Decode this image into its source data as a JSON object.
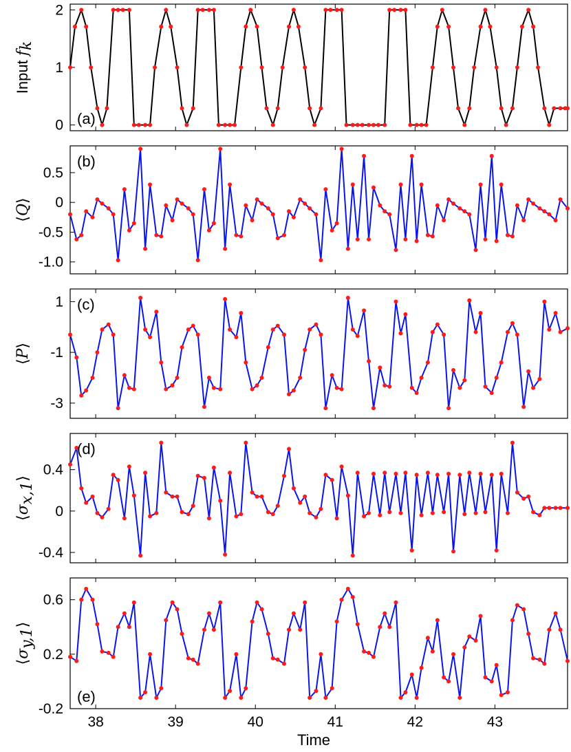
{
  "figure": {
    "x_axis_label": "Time",
    "x_ticks": [
      "38",
      "39",
      "40",
      "41",
      "42",
      "43"
    ]
  },
  "colors": {
    "black": "#000000",
    "blue": "#0b15e8",
    "red": "#ff1a1a"
  },
  "chart_data": [
    {
      "type": "line",
      "panel_label": "(a)",
      "ylabel": "Input f_k",
      "ylabel_text": "Input ",
      "ylabel_math": "f",
      "ylabel_sub": "k",
      "y_ticks": [
        "0",
        "1",
        "2"
      ],
      "y_tick_values": [
        0,
        1,
        2
      ],
      "ylim": [
        -0.1,
        2.1
      ],
      "xlim": [
        37.68,
        43.91
      ],
      "line_color": "#000000",
      "marker_color": "#ff1a1a",
      "x": [
        37.68,
        37.74,
        37.82,
        37.88,
        37.94,
        38.02,
        38.08,
        38.14,
        38.22,
        38.28,
        38.34,
        38.42,
        38.48,
        38.54,
        38.62,
        38.68,
        38.74,
        38.82,
        38.88,
        38.94,
        39.02,
        39.08,
        39.14,
        39.22,
        39.28,
        39.34,
        39.42,
        39.48,
        39.54,
        39.62,
        39.68,
        39.74,
        39.82,
        39.88,
        39.94,
        40.02,
        40.08,
        40.14,
        40.22,
        40.28,
        40.34,
        40.42,
        40.48,
        40.54,
        40.62,
        40.68,
        40.74,
        40.82,
        40.88,
        40.94,
        41.02,
        41.08,
        41.14,
        41.22,
        41.28,
        41.34,
        41.42,
        41.48,
        41.54,
        41.62,
        41.68,
        41.74,
        41.82,
        41.88,
        41.94,
        42.02,
        42.08,
        42.14,
        42.22,
        42.28,
        42.34,
        42.42,
        42.48,
        42.54,
        42.62,
        42.68,
        42.74,
        42.82,
        42.88,
        42.94,
        43.02,
        43.08,
        43.14,
        43.22,
        43.28,
        43.34,
        43.42,
        43.48,
        43.54,
        43.62,
        43.68,
        43.74,
        43.82,
        43.88,
        43.91
      ],
      "y": [
        1,
        1.71,
        2,
        1.71,
        1,
        0.29,
        0,
        0.29,
        2,
        2,
        2,
        2,
        0,
        0,
        0,
        0,
        1,
        1.71,
        2,
        1.71,
        1,
        0.29,
        0,
        0.29,
        2,
        2,
        2,
        2,
        0,
        0,
        0,
        0,
        1,
        1.71,
        2,
        1.71,
        1,
        0.29,
        0,
        0.29,
        1,
        1.71,
        2,
        1.71,
        1,
        0.29,
        0,
        0.29,
        2,
        2,
        2,
        2,
        0,
        0,
        0,
        0,
        0,
        0,
        0,
        0,
        2,
        2,
        2,
        2,
        0,
        0,
        0,
        0,
        1,
        1.71,
        2,
        1.71,
        1,
        0.29,
        0,
        0.29,
        1,
        1.71,
        2,
        1.71,
        1,
        0.29,
        0,
        0.29,
        1,
        1.71,
        2,
        1.71,
        1,
        0.29,
        0,
        0.29,
        0.29,
        0.29,
        0.29
      ]
    },
    {
      "type": "line",
      "panel_label": "(b)",
      "ylabel": "⟨Q⟩",
      "y_ticks": [
        "0.5",
        "0",
        "-0.5",
        "-1.0"
      ],
      "y_tick_values": [
        0.5,
        0,
        -0.5,
        -1.0
      ],
      "ylim": [
        -1.2,
        0.95
      ],
      "xlim": [
        37.68,
        43.91
      ],
      "line_color": "#0b15e8",
      "marker_color": "#ff1a1a",
      "x": [
        37.68,
        37.76,
        37.82,
        37.88,
        37.96,
        38.02,
        38.08,
        38.16,
        38.22,
        38.28,
        38.36,
        38.42,
        38.48,
        38.56,
        38.62,
        38.68,
        38.76,
        38.82,
        38.88,
        38.96,
        39.02,
        39.08,
        39.16,
        39.22,
        39.28,
        39.36,
        39.42,
        39.48,
        39.56,
        39.62,
        39.68,
        39.76,
        39.82,
        39.88,
        39.96,
        40.02,
        40.08,
        40.16,
        40.22,
        40.28,
        40.36,
        40.42,
        40.48,
        40.56,
        40.62,
        40.68,
        40.76,
        40.82,
        40.88,
        40.96,
        41.02,
        41.08,
        41.16,
        41.22,
        41.28,
        41.36,
        41.42,
        41.48,
        41.56,
        41.62,
        41.68,
        41.76,
        41.82,
        41.88,
        41.96,
        42.02,
        42.08,
        42.16,
        42.22,
        42.28,
        42.36,
        42.42,
        42.48,
        42.56,
        42.62,
        42.68,
        42.76,
        42.82,
        42.88,
        42.96,
        43.02,
        43.08,
        43.16,
        43.22,
        43.28,
        43.36,
        43.42,
        43.48,
        43.56,
        43.62,
        43.68,
        43.76,
        43.82,
        43.91
      ],
      "y": [
        -0.2,
        -0.62,
        -0.55,
        -0.15,
        -0.25,
        0.05,
        -0.02,
        -0.1,
        -0.2,
        -0.97,
        0.22,
        -0.47,
        -0.35,
        0.9,
        -0.78,
        0.3,
        -0.55,
        -0.57,
        -0.05,
        -0.3,
        0.05,
        -0.02,
        -0.1,
        -0.2,
        -0.97,
        0.22,
        -0.47,
        -0.35,
        0.9,
        -0.78,
        0.3,
        -0.55,
        -0.57,
        -0.05,
        -0.3,
        0.05,
        -0.02,
        -0.1,
        -0.2,
        -0.6,
        -0.55,
        -0.15,
        -0.25,
        0.05,
        -0.02,
        -0.1,
        -0.2,
        -0.97,
        0.22,
        -0.47,
        -0.35,
        0.9,
        -0.78,
        0.3,
        -0.62,
        0.78,
        -0.62,
        0.25,
        -0.05,
        -0.15,
        -0.2,
        -0.8,
        0.3,
        -0.62,
        0.78,
        -0.65,
        0.3,
        -0.55,
        -0.57,
        -0.05,
        -0.3,
        0.05,
        -0.02,
        -0.1,
        -0.15,
        -0.2,
        -0.8,
        0.3,
        -0.62,
        0.78,
        -0.65,
        0.3,
        -0.55,
        -0.57,
        -0.05,
        -0.3,
        0.05,
        -0.02,
        -0.1,
        -0.15,
        -0.2,
        -0.3,
        0.05,
        -0.1
      ],
      "note": ""
    },
    {
      "type": "line",
      "panel_label": "(c)",
      "ylabel": "⟨P⟩",
      "y_ticks": [
        "1",
        "-1",
        "-3"
      ],
      "y_tick_values": [
        1,
        -1,
        -3
      ],
      "ylim": [
        -3.6,
        1.5
      ],
      "xlim": [
        37.68,
        43.91
      ],
      "line_color": "#0b15e8",
      "marker_color": "#ff1a1a",
      "x": [],
      "y": []
    },
    {
      "type": "line",
      "panel_label": "(d)",
      "ylabel": "⟨σx,1⟩",
      "ylabel_math": "σ",
      "ylabel_sub": "x,1",
      "y_ticks": [
        "0.4",
        "0",
        "-0.4"
      ],
      "y_tick_values": [
        0.4,
        0,
        -0.4
      ],
      "ylim": [
        -0.5,
        0.75
      ],
      "xlim": [
        37.68,
        43.91
      ],
      "line_color": "#0b15e8",
      "marker_color": "#ff1a1a",
      "x": [],
      "y": []
    },
    {
      "type": "line",
      "panel_label": "(e)",
      "ylabel": "⟨σy,1⟩",
      "ylabel_math": "σ",
      "ylabel_sub": "y,1",
      "y_ticks": [
        "0.6",
        "0.2",
        "-0.2"
      ],
      "y_tick_values": [
        0.6,
        0.2,
        -0.2
      ],
      "ylim": [
        -0.2,
        0.76
      ],
      "xlim": [
        37.68,
        43.91
      ],
      "line_color": "#0b15e8",
      "marker_color": "#ff1a1a",
      "x": [],
      "y": []
    }
  ]
}
